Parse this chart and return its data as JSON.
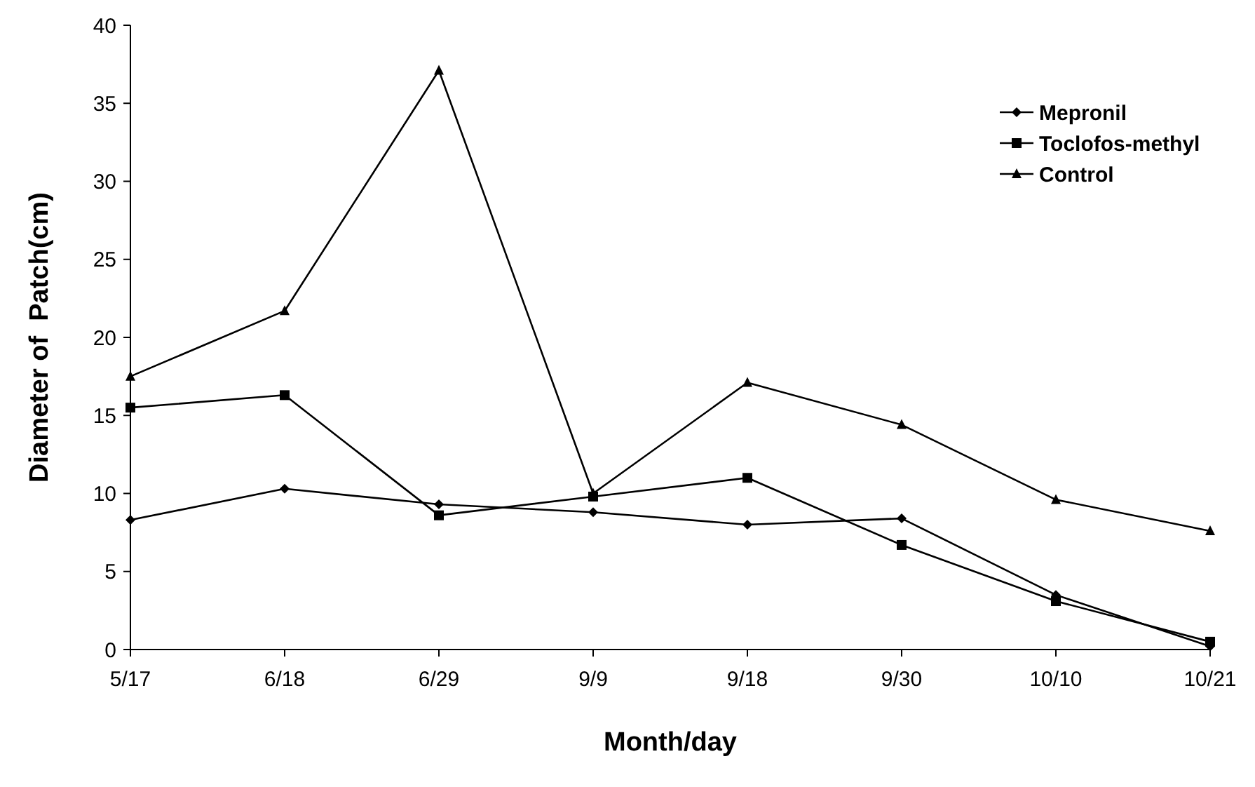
{
  "chart_data": {
    "type": "line",
    "xlabel": "Month/day",
    "ylabel": "Diameter of  Patch(cm)",
    "categories": [
      "5/17",
      "6/18",
      "6/29",
      "9/9",
      "9/18",
      "9/30",
      "10/10",
      "10/21"
    ],
    "ylim": [
      0,
      40
    ],
    "yticks": [
      0,
      5,
      10,
      15,
      20,
      25,
      30,
      35,
      40
    ],
    "grid": false,
    "legend": "top right",
    "line_style": "solid",
    "series": [
      {
        "name": "Mepronil",
        "color": "#000000",
        "marker": "diamond",
        "values": [
          8.3,
          10.3,
          9.3,
          8.8,
          8,
          8.4,
          3.5,
          0.2
        ]
      },
      {
        "name": "Toclofos-methyl",
        "color": "#000000",
        "marker": "square",
        "values": [
          15.5,
          16.3,
          8.6,
          9.8,
          11,
          6.7,
          3.1,
          0.5
        ]
      },
      {
        "name": "Control",
        "color": "#000000",
        "marker": "triangle",
        "values": [
          17.5,
          21.7,
          37.1,
          10,
          17.1,
          14.4,
          9.6,
          7.6
        ]
      }
    ]
  }
}
